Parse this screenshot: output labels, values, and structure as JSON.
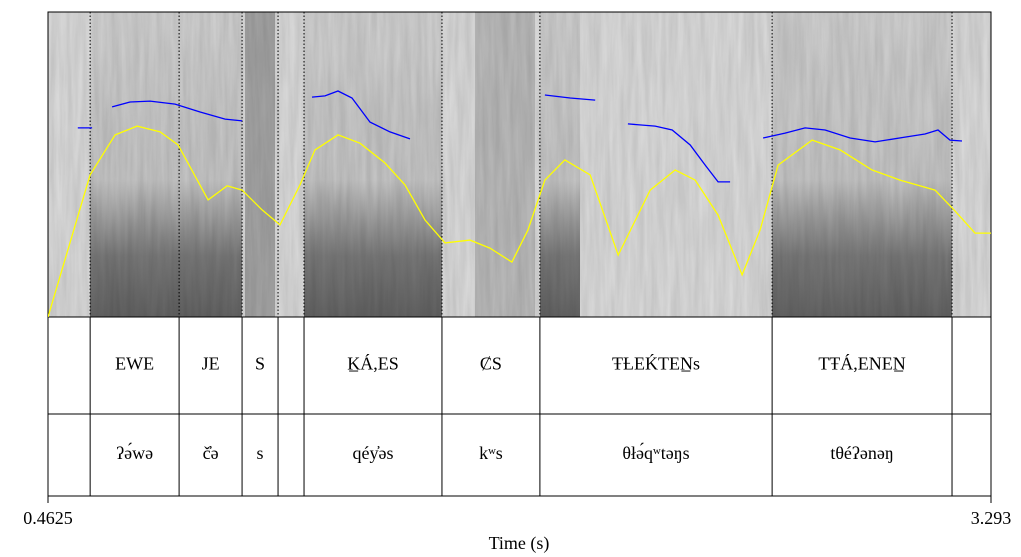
{
  "chart_data": {
    "type": "spectrogram",
    "xlabel": "Time (s)",
    "xlim": [
      0.4625,
      3.293
    ],
    "xticks": [
      0.4625,
      3.293
    ],
    "ylim": [
      0,
      100
    ],
    "boundaries": [
      0.589,
      0.856,
      1.045,
      1.153,
      1.231,
      1.645,
      1.939,
      2.636,
      3.176
    ],
    "tiers": [
      {
        "labels": [
          null,
          "EWE",
          "JE",
          "S",
          null,
          "K̲Á,ES",
          "ȻS",
          "ŦȽEḰTEN̲s",
          "TŦÁ,ENEN̲",
          null
        ]
      },
      {
        "labels": [
          null,
          "ʔə́wə",
          "č̓ə",
          "s",
          null,
          "qéy̓əs",
          "kʷs",
          "θłə́qʷtəŋs",
          "tθéʔənəŋ",
          null
        ]
      }
    ],
    "series": [
      {
        "color": "#ffff00",
        "x": [
          0.4625,
          0.589,
          0.664,
          0.73,
          0.799,
          0.853,
          0.943,
          1.0,
          1.045,
          1.105,
          1.159,
          1.219,
          1.264,
          1.333,
          1.399,
          1.474,
          1.534,
          1.594,
          1.654,
          1.729,
          1.789,
          1.855,
          1.903,
          1.954,
          2.014,
          2.09,
          2.174,
          2.27,
          2.345,
          2.405,
          2.474,
          2.546,
          2.6,
          2.654,
          2.756,
          2.84,
          2.936,
          3.02,
          3.125,
          3.185,
          3.245,
          3.293
        ],
        "values": [
          0,
          46.6,
          59.7,
          62.6,
          60.7,
          56.4,
          38.4,
          43.0,
          41.6,
          35.1,
          30.2,
          43.3,
          54.8,
          59.7,
          57.0,
          50.5,
          43.3,
          31.8,
          24.3,
          25.2,
          22.6,
          18.0,
          28.5,
          44.9,
          51.5,
          46.6,
          20.3,
          41.6,
          48.2,
          44.9,
          33.4,
          13.8,
          28.5,
          49.8,
          58.0,
          54.8,
          48.2,
          44.9,
          41.6,
          34.8,
          27.5,
          27.5
        ]
      },
      {
        "color": "#0000ff",
        "x": [
          0.552,
          0.595,
          null,
          0.655,
          0.709,
          0.769,
          0.844,
          0.919,
          0.994,
          1.045,
          null,
          1.255,
          1.294,
          1.333,
          1.375,
          1.429,
          1.489,
          1.549,
          null,
          1.954,
          2.03,
          2.105,
          null,
          2.203,
          2.285,
          2.336,
          2.39,
          2.435,
          2.474,
          2.51,
          null,
          2.609,
          2.675,
          2.735,
          2.795,
          2.87,
          2.945,
          3.035,
          3.095,
          3.134,
          3.17,
          3.206
        ],
        "values": [
          62.0,
          62.0,
          null,
          68.9,
          70.5,
          70.8,
          69.8,
          67.2,
          64.9,
          64.3,
          null,
          72.1,
          72.5,
          74.1,
          71.8,
          63.9,
          60.7,
          58.4,
          null,
          72.8,
          71.8,
          71.1,
          null,
          63.3,
          62.6,
          61.3,
          56.4,
          49.8,
          44.3,
          44.3,
          null,
          58.7,
          60.3,
          62.0,
          61.3,
          58.7,
          57.4,
          59.0,
          60.0,
          61.3,
          58.0,
          57.7
        ]
      }
    ]
  }
}
